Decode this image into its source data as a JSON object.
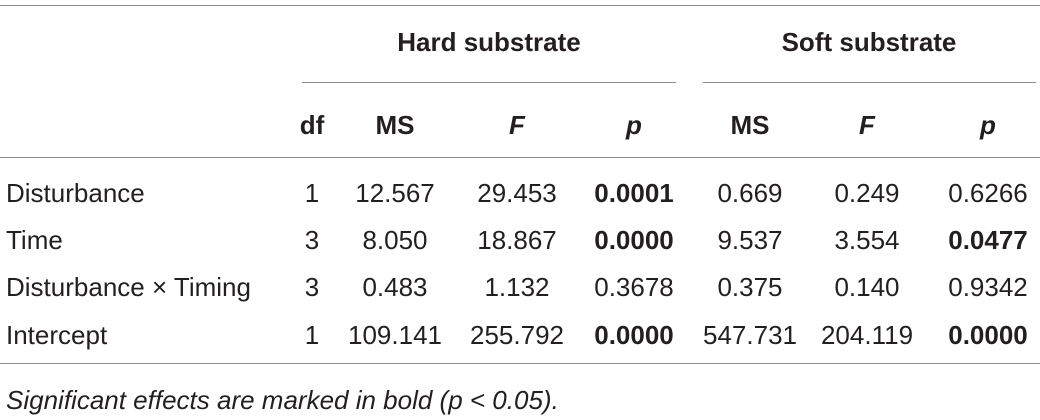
{
  "table": {
    "groups": [
      "Hard substrate",
      "Soft substrate"
    ],
    "columns": [
      {
        "text": "df",
        "italic": false
      },
      {
        "text": "MS",
        "italic": false
      },
      {
        "text": "F",
        "italic": true
      },
      {
        "text": "p",
        "italic": true
      },
      {
        "text": "MS",
        "italic": false
      },
      {
        "text": "F",
        "italic": true
      },
      {
        "text": "p",
        "italic": true
      }
    ],
    "rows": [
      {
        "label": "Disturbance",
        "cells": [
          {
            "text": "1",
            "bold": false
          },
          {
            "text": "12.567",
            "bold": false
          },
          {
            "text": "29.453",
            "bold": false
          },
          {
            "text": "0.0001",
            "bold": true
          },
          {
            "text": "0.669",
            "bold": false
          },
          {
            "text": "0.249",
            "bold": false
          },
          {
            "text": "0.6266",
            "bold": false
          }
        ]
      },
      {
        "label": "Time",
        "cells": [
          {
            "text": "3",
            "bold": false
          },
          {
            "text": "8.050",
            "bold": false
          },
          {
            "text": "18.867",
            "bold": false
          },
          {
            "text": "0.0000",
            "bold": true
          },
          {
            "text": "9.537",
            "bold": false
          },
          {
            "text": "3.554",
            "bold": false
          },
          {
            "text": "0.0477",
            "bold": true
          }
        ]
      },
      {
        "label": "Disturbance × Timing",
        "cells": [
          {
            "text": "3",
            "bold": false
          },
          {
            "text": "0.483",
            "bold": false
          },
          {
            "text": "1.132",
            "bold": false
          },
          {
            "text": "0.3678",
            "bold": false
          },
          {
            "text": "0.375",
            "bold": false
          },
          {
            "text": "0.140",
            "bold": false
          },
          {
            "text": "0.9342",
            "bold": false
          }
        ]
      },
      {
        "label": "Intercept",
        "cells": [
          {
            "text": "1",
            "bold": false
          },
          {
            "text": "109.141",
            "bold": false
          },
          {
            "text": "255.792",
            "bold": false
          },
          {
            "text": "0.0000",
            "bold": true
          },
          {
            "text": "547.731",
            "bold": false
          },
          {
            "text": "204.119",
            "bold": false
          },
          {
            "text": "0.0000",
            "bold": true
          }
        ]
      }
    ],
    "footnote": "Significant effects are marked in bold (p < 0.05)."
  }
}
